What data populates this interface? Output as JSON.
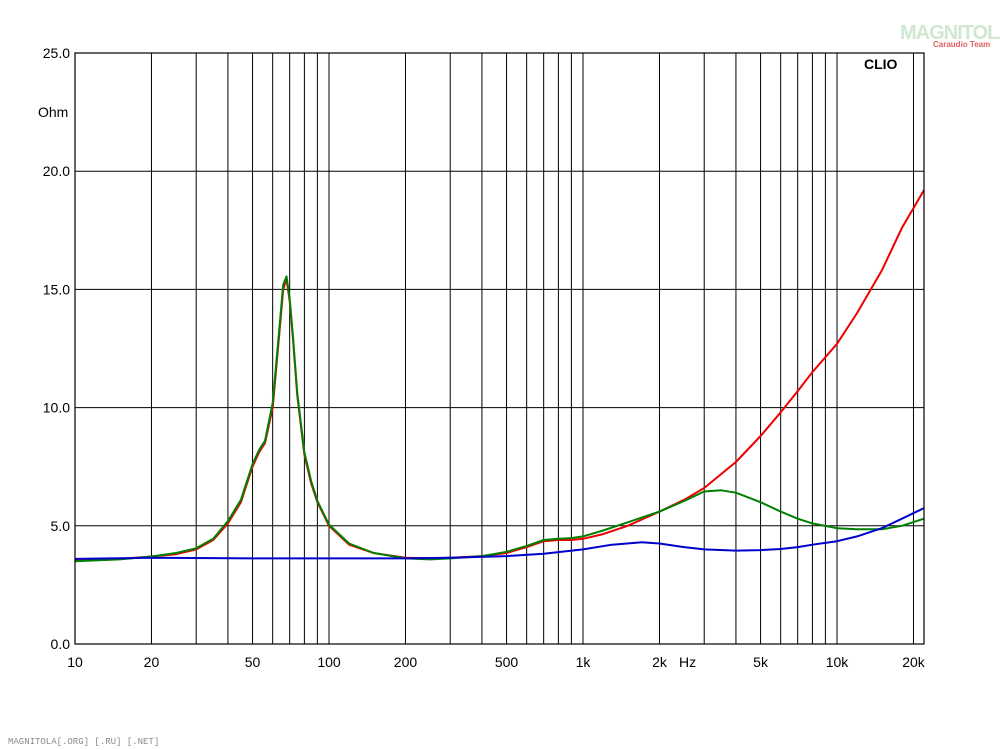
{
  "watermark": {
    "logo_text": "MAGNITOLA",
    "logo_sub": "Caraudio Team",
    "footer": "MAGNITOLA[.ORG] [.RU] [.NET]"
  },
  "chart_data": {
    "type": "line",
    "brand_label": "CLIO",
    "xlabel": "Hz",
    "ylabel": "Ohm",
    "x_scale": "log",
    "xlim": [
      10,
      22000
    ],
    "ylim": [
      0,
      25
    ],
    "grid": true,
    "x_major_ticks": [
      10,
      20,
      50,
      100,
      200,
      500,
      1000,
      2000,
      5000,
      10000,
      20000
    ],
    "x_tick_labels": [
      "10",
      "20",
      "50",
      "100",
      "200",
      "500",
      "1k",
      "2k",
      "5k",
      "10k",
      "20k"
    ],
    "y_ticks": [
      0,
      5,
      10,
      15,
      20,
      25
    ],
    "y_tick_labels": [
      "0.0",
      "5.0",
      "10.0",
      "15.0",
      "20.0",
      "25.0"
    ],
    "series": [
      {
        "color": "#ee0000",
        "points": [
          [
            10,
            3.55
          ],
          [
            15,
            3.6
          ],
          [
            20,
            3.7
          ],
          [
            25,
            3.8
          ],
          [
            30,
            4.0
          ],
          [
            35,
            4.4
          ],
          [
            40,
            5.1
          ],
          [
            45,
            6.0
          ],
          [
            50,
            7.5
          ],
          [
            53,
            8.1
          ],
          [
            56,
            8.5
          ],
          [
            60,
            10.0
          ],
          [
            63,
            12.5
          ],
          [
            66,
            15.0
          ],
          [
            68,
            15.45
          ],
          [
            70,
            14.5
          ],
          [
            72,
            13.0
          ],
          [
            75,
            10.5
          ],
          [
            80,
            8.0
          ],
          [
            85,
            6.8
          ],
          [
            90,
            6.0
          ],
          [
            100,
            5.0
          ],
          [
            120,
            4.2
          ],
          [
            150,
            3.85
          ],
          [
            200,
            3.65
          ],
          [
            250,
            3.62
          ],
          [
            300,
            3.65
          ],
          [
            400,
            3.72
          ],
          [
            500,
            3.85
          ],
          [
            600,
            4.1
          ],
          [
            700,
            4.35
          ],
          [
            800,
            4.4
          ],
          [
            900,
            4.4
          ],
          [
            1000,
            4.45
          ],
          [
            1200,
            4.65
          ],
          [
            1500,
            5.0
          ],
          [
            2000,
            5.6
          ],
          [
            2500,
            6.1
          ],
          [
            3000,
            6.6
          ],
          [
            4000,
            7.7
          ],
          [
            5000,
            8.8
          ],
          [
            6000,
            9.8
          ],
          [
            7000,
            10.7
          ],
          [
            8000,
            11.5
          ],
          [
            10000,
            12.7
          ],
          [
            12000,
            14.0
          ],
          [
            15000,
            15.8
          ],
          [
            18000,
            17.6
          ],
          [
            22000,
            19.2
          ]
        ]
      },
      {
        "color": "#008000",
        "points": [
          [
            10,
            3.5
          ],
          [
            15,
            3.58
          ],
          [
            20,
            3.7
          ],
          [
            25,
            3.85
          ],
          [
            30,
            4.05
          ],
          [
            35,
            4.45
          ],
          [
            40,
            5.2
          ],
          [
            45,
            6.1
          ],
          [
            50,
            7.6
          ],
          [
            53,
            8.2
          ],
          [
            56,
            8.6
          ],
          [
            60,
            10.2
          ],
          [
            63,
            12.7
          ],
          [
            66,
            15.2
          ],
          [
            68,
            15.55
          ],
          [
            70,
            14.6
          ],
          [
            72,
            13.1
          ],
          [
            75,
            10.6
          ],
          [
            80,
            8.1
          ],
          [
            85,
            6.9
          ],
          [
            90,
            6.05
          ],
          [
            100,
            5.05
          ],
          [
            120,
            4.25
          ],
          [
            150,
            3.85
          ],
          [
            200,
            3.62
          ],
          [
            250,
            3.58
          ],
          [
            300,
            3.62
          ],
          [
            400,
            3.72
          ],
          [
            500,
            3.9
          ],
          [
            600,
            4.15
          ],
          [
            700,
            4.4
          ],
          [
            800,
            4.45
          ],
          [
            900,
            4.48
          ],
          [
            1000,
            4.55
          ],
          [
            1200,
            4.8
          ],
          [
            1500,
            5.15
          ],
          [
            2000,
            5.6
          ],
          [
            2500,
            6.05
          ],
          [
            3000,
            6.45
          ],
          [
            3500,
            6.5
          ],
          [
            4000,
            6.4
          ],
          [
            5000,
            6.0
          ],
          [
            6000,
            5.6
          ],
          [
            7000,
            5.3
          ],
          [
            8000,
            5.1
          ],
          [
            10000,
            4.9
          ],
          [
            12000,
            4.85
          ],
          [
            15000,
            4.85
          ],
          [
            18000,
            5.0
          ],
          [
            22000,
            5.3
          ]
        ]
      },
      {
        "color": "#0000cc",
        "points": [
          [
            10,
            3.6
          ],
          [
            20,
            3.65
          ],
          [
            50,
            3.62
          ],
          [
            100,
            3.62
          ],
          [
            200,
            3.62
          ],
          [
            300,
            3.65
          ],
          [
            500,
            3.72
          ],
          [
            700,
            3.82
          ],
          [
            1000,
            4.0
          ],
          [
            1300,
            4.2
          ],
          [
            1700,
            4.3
          ],
          [
            2000,
            4.25
          ],
          [
            2500,
            4.1
          ],
          [
            3000,
            4.0
          ],
          [
            4000,
            3.95
          ],
          [
            5000,
            3.97
          ],
          [
            6000,
            4.02
          ],
          [
            7000,
            4.1
          ],
          [
            8000,
            4.2
          ],
          [
            10000,
            4.35
          ],
          [
            12000,
            4.55
          ],
          [
            15000,
            4.9
          ],
          [
            18000,
            5.3
          ],
          [
            22000,
            5.75
          ]
        ]
      }
    ]
  }
}
